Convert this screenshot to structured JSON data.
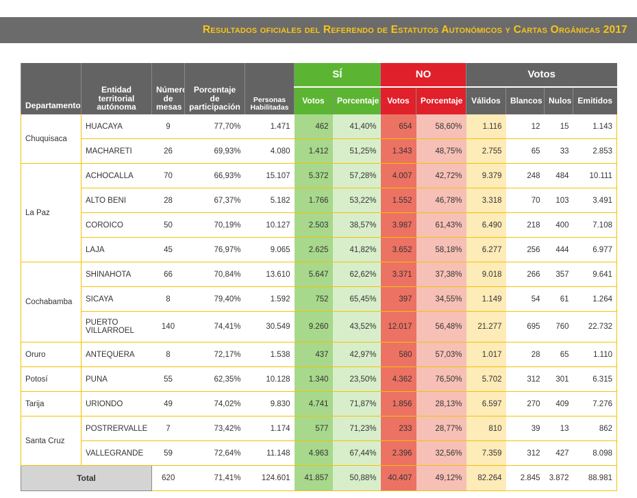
{
  "banner": {
    "title": "Resultados oficiales del Referendo de Estatutos Autonómicos y Cartas Orgánicas 2017"
  },
  "headers": {
    "departamento": "Departamento",
    "entidad": "Entidad territorial autónoma",
    "mesas": "Número de mesas",
    "participacion": "Porcentaje de participación",
    "habilitadas": "Personas Habilitadas",
    "si": "SÍ",
    "no": "NO",
    "votos": "Votos",
    "votos_sub": "Votos",
    "porcentaje_sub": "Porcentaje",
    "validos": "Válidos",
    "blancos": "Blancos",
    "nulos": "Nulos",
    "emitidos": "Emitidos"
  },
  "departments": [
    {
      "name": "Chuquisaca",
      "rows": [
        {
          "entidad": "HUACAYA",
          "mesas": "9",
          "participacion": "77,70%",
          "habilitadas": "1.471",
          "si_votos": "462",
          "si_pct": "41,40%",
          "no_votos": "654",
          "no_pct": "58,60%",
          "validos": "1.116",
          "blancos": "12",
          "nulos": "15",
          "emitidos": "1.143"
        },
        {
          "entidad": "MACHARETI",
          "mesas": "26",
          "participacion": "69,93%",
          "habilitadas": "4.080",
          "si_votos": "1.412",
          "si_pct": "51,25%",
          "no_votos": "1.343",
          "no_pct": "48,75%",
          "validos": "2.755",
          "blancos": "65",
          "nulos": "33",
          "emitidos": "2.853"
        }
      ]
    },
    {
      "name": "La Paz",
      "rows": [
        {
          "entidad": "ACHOCALLA",
          "mesas": "70",
          "participacion": "66,93%",
          "habilitadas": "15.107",
          "si_votos": "5.372",
          "si_pct": "57,28%",
          "no_votos": "4.007",
          "no_pct": "42,72%",
          "validos": "9.379",
          "blancos": "248",
          "nulos": "484",
          "emitidos": "10.111"
        },
        {
          "entidad": "ALTO BENI",
          "mesas": "28",
          "participacion": "67,37%",
          "habilitadas": "5.182",
          "si_votos": "1.766",
          "si_pct": "53,22%",
          "no_votos": "1.552",
          "no_pct": "46,78%",
          "validos": "3.318",
          "blancos": "70",
          "nulos": "103",
          "emitidos": "3.491"
        },
        {
          "entidad": "COROICO",
          "mesas": "50",
          "participacion": "70,19%",
          "habilitadas": "10.127",
          "si_votos": "2.503",
          "si_pct": "38,57%",
          "no_votos": "3.987",
          "no_pct": "61,43%",
          "validos": "6.490",
          "blancos": "218",
          "nulos": "400",
          "emitidos": "7.108"
        },
        {
          "entidad": "LAJA",
          "mesas": "45",
          "participacion": "76,97%",
          "habilitadas": "9.065",
          "si_votos": "2.625",
          "si_pct": "41,82%",
          "no_votos": "3.652",
          "no_pct": "58,18%",
          "validos": "6.277",
          "blancos": "256",
          "nulos": "444",
          "emitidos": "6.977"
        }
      ]
    },
    {
      "name": "Cochabamba",
      "rows": [
        {
          "entidad": "SHINAHOTA",
          "mesas": "66",
          "participacion": "70,84%",
          "habilitadas": "13.610",
          "si_votos": "5.647",
          "si_pct": "62,62%",
          "no_votos": "3.371",
          "no_pct": "37,38%",
          "validos": "9.018",
          "blancos": "266",
          "nulos": "357",
          "emitidos": "9.641"
        },
        {
          "entidad": "SICAYA",
          "mesas": "8",
          "participacion": "79,40%",
          "habilitadas": "1.592",
          "si_votos": "752",
          "si_pct": "65,45%",
          "no_votos": "397",
          "no_pct": "34,55%",
          "validos": "1.149",
          "blancos": "54",
          "nulos": "61",
          "emitidos": "1.264"
        },
        {
          "entidad": "PUERTO VILLARROEL",
          "mesas": "140",
          "participacion": "74,41%",
          "habilitadas": "30.549",
          "si_votos": "9.260",
          "si_pct": "43,52%",
          "no_votos": "12.017",
          "no_pct": "56,48%",
          "validos": "21.277",
          "blancos": "695",
          "nulos": "760",
          "emitidos": "22.732"
        }
      ]
    },
    {
      "name": "Oruro",
      "rows": [
        {
          "entidad": "ANTEQUERA",
          "mesas": "8",
          "participacion": "72,17%",
          "habilitadas": "1.538",
          "si_votos": "437",
          "si_pct": "42,97%",
          "no_votos": "580",
          "no_pct": "57,03%",
          "validos": "1.017",
          "blancos": "28",
          "nulos": "65",
          "emitidos": "1.110"
        }
      ]
    },
    {
      "name": "Potosí",
      "rows": [
        {
          "entidad": "PUNA",
          "mesas": "55",
          "participacion": "62,35%",
          "habilitadas": "10.128",
          "si_votos": "1.340",
          "si_pct": "23,50%",
          "no_votos": "4.362",
          "no_pct": "76,50%",
          "validos": "5.702",
          "blancos": "312",
          "nulos": "301",
          "emitidos": "6.315"
        }
      ]
    },
    {
      "name": "Tarija",
      "rows": [
        {
          "entidad": "URIONDO",
          "mesas": "49",
          "participacion": "74,02%",
          "habilitadas": "9.830",
          "si_votos": "4.741",
          "si_pct": "71,87%",
          "no_votos": "1.856",
          "no_pct": "28,13%",
          "validos": "6.597",
          "blancos": "270",
          "nulos": "409",
          "emitidos": "7.276"
        }
      ]
    },
    {
      "name": "Santa Cruz",
      "rows": [
        {
          "entidad": "POSTRERVALLE",
          "mesas": "7",
          "participacion": "73,42%",
          "habilitadas": "1.174",
          "si_votos": "577",
          "si_pct": "71,23%",
          "no_votos": "233",
          "no_pct": "28,77%",
          "validos": "810",
          "blancos": "39",
          "nulos": "13",
          "emitidos": "862"
        },
        {
          "entidad": "VALLEGRANDE",
          "mesas": "59",
          "participacion": "72,64%",
          "habilitadas": "11.148",
          "si_votos": "4.963",
          "si_pct": "67,44%",
          "no_votos": "2.396",
          "no_pct": "32,56%",
          "validos": "7.359",
          "blancos": "312",
          "nulos": "427",
          "emitidos": "8.098"
        }
      ]
    }
  ],
  "total": {
    "label": "Total",
    "mesas": "620",
    "participacion": "71,41%",
    "habilitadas": "124.601",
    "si_votos": "41.857",
    "si_pct": "50,88%",
    "no_votos": "40.407",
    "no_pct": "49,12%",
    "validos": "82.264",
    "blancos": "2.845",
    "nulos": "3.872",
    "emitidos": "88.981"
  },
  "colors": {
    "banner_bg": "#6b6b6b",
    "banner_text": "#f7c41a",
    "header_bg": "#636363",
    "si": "#5cb532",
    "no": "#e0202a",
    "row_border": "#f2c200"
  }
}
